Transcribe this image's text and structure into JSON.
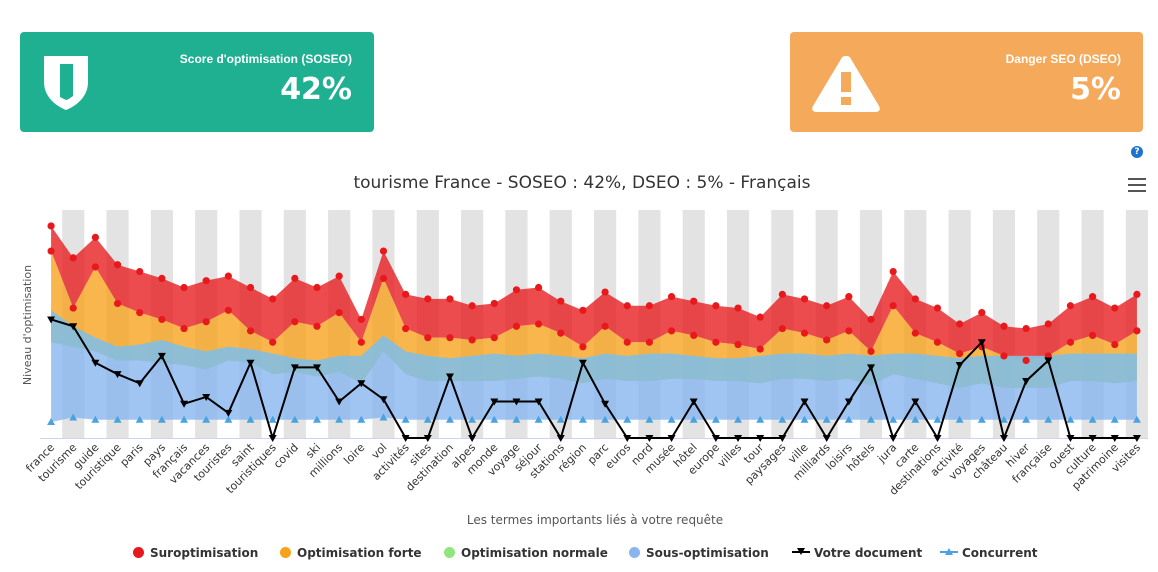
{
  "cards": {
    "soseo": {
      "label": "Score d'optimisation (SOSEO)",
      "value": "42%",
      "color": "#1eb091",
      "icon": "shield-icon"
    },
    "dseo": {
      "label": "Danger SEO (DSEO)",
      "value": "5%",
      "color": "#f5a95a",
      "icon": "warning-icon"
    }
  },
  "help_label": "?",
  "chart_data": {
    "type": "area",
    "title": "tourisme France - SOSEO : 42%, DSEO : 5% - Français",
    "xlabel": "Les termes importants liés à votre requête",
    "ylabel": "Niveau d'optimisation",
    "ylim": [
      0,
      100
    ],
    "grid": true,
    "legend_position": "bottom",
    "categories": [
      "france",
      "tourisme",
      "guide",
      "touristique",
      "paris",
      "pays",
      "français",
      "vacances",
      "touristes",
      "saint",
      "touristiques",
      "covid",
      "ski",
      "millions",
      "loire",
      "vol",
      "activités",
      "sites",
      "destination",
      "alpes",
      "monde",
      "voyage",
      "séjour",
      "stations",
      "région",
      "parc",
      "euros",
      "nord",
      "musée",
      "hôtel",
      "europe",
      "villes",
      "tour",
      "paysages",
      "ville",
      "milliards",
      "loisirs",
      "hôtels",
      "jura",
      "carte",
      "destinations",
      "activité",
      "voyages",
      "château",
      "hiver",
      "française",
      "ouest",
      "culture",
      "patrimoine",
      "visites"
    ],
    "series": [
      {
        "name": "Suroptimisation",
        "color": "#e8191c",
        "values": [
          93,
          79,
          88,
          76,
          73,
          70,
          66,
          69,
          71,
          66,
          61,
          70,
          66,
          71,
          52,
          82,
          63,
          61,
          61,
          58,
          59,
          65,
          66,
          60,
          56,
          64,
          58,
          58,
          62,
          60,
          58,
          57,
          53,
          63,
          61,
          58,
          62,
          52,
          73,
          61,
          57,
          50,
          55,
          49,
          48,
          50,
          58,
          62,
          57,
          63
        ]
      },
      {
        "name": "Optimisation forte",
        "color": "#f7a21b",
        "values": [
          82,
          57,
          75,
          59,
          55,
          52,
          48,
          51,
          56,
          47,
          42,
          51,
          49,
          55,
          42,
          70,
          48,
          44,
          44,
          43,
          44,
          49,
          50,
          46,
          40,
          49,
          42,
          42,
          47,
          45,
          42,
          41,
          39,
          48,
          46,
          43,
          47,
          38,
          58,
          46,
          42,
          37,
          40,
          36,
          34,
          36,
          42,
          45,
          41,
          47
        ]
      },
      {
        "name": "Optimisation normale",
        "color": "#8fe67e",
        "values": [
          42,
          40,
          38,
          34,
          34,
          33,
          32,
          30,
          34,
          33,
          28,
          29,
          27,
          29,
          24,
          38,
          28,
          25,
          25,
          25,
          25,
          26,
          27,
          26,
          24,
          26,
          25,
          25,
          26,
          26,
          25,
          25,
          24,
          26,
          26,
          25,
          26,
          23,
          28,
          26,
          24,
          22,
          24,
          22,
          22,
          22,
          25,
          25,
          24,
          25
        ]
      },
      {
        "name": "Sous-optimisation",
        "color": "#86b5ef",
        "values": [
          56,
          49,
          44,
          40,
          41,
          43,
          40,
          38,
          40,
          39,
          37,
          35,
          34,
          36,
          36,
          45,
          38,
          36,
          35,
          36,
          37,
          36,
          37,
          36,
          35,
          37,
          36,
          37,
          37,
          36,
          35,
          35,
          36,
          37,
          37,
          36,
          37,
          36,
          37,
          37,
          36,
          35,
          36,
          36,
          36,
          36,
          37,
          37,
          37,
          37
        ]
      },
      {
        "name": "Votre document",
        "color": "#000000",
        "values": [
          52,
          49,
          33,
          28,
          24,
          36,
          15,
          18,
          11,
          33,
          0,
          31,
          31,
          16,
          24,
          17,
          0,
          0,
          27,
          0,
          16,
          16,
          16,
          0,
          33,
          15,
          0,
          0,
          0,
          16,
          0,
          0,
          0,
          0,
          16,
          0,
          16,
          31,
          0,
          16,
          0,
          32,
          42,
          0,
          25,
          34,
          0,
          0,
          0,
          0
        ]
      },
      {
        "name": "Concurrent",
        "color": "#4aa3df",
        "values": [
          7,
          9,
          8,
          8,
          8,
          8,
          8,
          8,
          8,
          8,
          8,
          8,
          8,
          8,
          8,
          9,
          8,
          8,
          8,
          8,
          8,
          8,
          8,
          8,
          8,
          8,
          8,
          8,
          8,
          8,
          8,
          8,
          8,
          8,
          8,
          8,
          8,
          8,
          8,
          8,
          8,
          8,
          8,
          8,
          8,
          8,
          8,
          8,
          8,
          8
        ]
      }
    ]
  }
}
